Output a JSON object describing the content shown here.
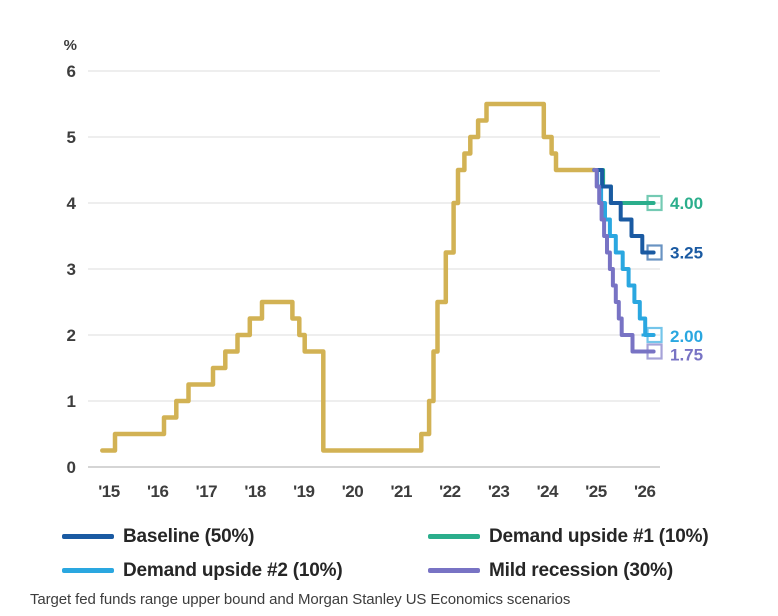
{
  "caption": "Target fed funds range upper bound and Morgan Stanley US Economics scenarios",
  "legend": {
    "items": [
      {
        "label": "Baseline (50%)",
        "color": "#1a5aa2"
      },
      {
        "label": "Demand upside #1 (10%)",
        "color": "#2bae8c"
      },
      {
        "label": "Demand upside #2 (10%)",
        "color": "#2aa7e0"
      },
      {
        "label": "Mild recession (30%)",
        "color": "#7873c4"
      }
    ]
  },
  "chart_data": {
    "type": "line",
    "unit": "%",
    "ylim": [
      0,
      6
    ],
    "yticks": [
      6,
      5,
      4,
      3,
      2,
      1,
      0
    ],
    "xtick_labels": [
      "'15",
      "'16",
      "'17",
      "'18",
      "'19",
      "'20",
      "'21",
      "'22",
      "'23",
      "'24",
      "'25",
      "'26"
    ],
    "grid": "horizontal",
    "series": [
      {
        "name": "Target fed funds range upper bound",
        "key": "history",
        "color": "#d2b254",
        "width": 4.5,
        "points": [
          [
            2015.7,
            0.25
          ],
          [
            2015.96,
            0.5
          ],
          [
            2016.96,
            0.75
          ],
          [
            2017.21,
            1.0
          ],
          [
            2017.46,
            1.25
          ],
          [
            2017.96,
            1.5
          ],
          [
            2018.21,
            1.75
          ],
          [
            2018.46,
            2.0
          ],
          [
            2018.71,
            2.25
          ],
          [
            2018.96,
            2.5
          ],
          [
            2019.58,
            2.25
          ],
          [
            2019.72,
            2.0
          ],
          [
            2019.83,
            1.75
          ],
          [
            2020.21,
            0.25
          ],
          [
            2022.21,
            0.5
          ],
          [
            2022.37,
            1.0
          ],
          [
            2022.46,
            1.75
          ],
          [
            2022.54,
            2.5
          ],
          [
            2022.71,
            3.25
          ],
          [
            2022.87,
            4.0
          ],
          [
            2022.96,
            4.5
          ],
          [
            2023.09,
            4.75
          ],
          [
            2023.21,
            5.0
          ],
          [
            2023.37,
            5.25
          ],
          [
            2023.54,
            5.5
          ],
          [
            2024.71,
            5.0
          ],
          [
            2024.87,
            4.75
          ],
          [
            2024.96,
            4.5
          ],
          [
            2025.74,
            4.5
          ]
        ]
      },
      {
        "name": "Demand upside #2 (10%)",
        "key": "demand-upside-2",
        "color": "#2aa7e0",
        "width": 4,
        "end_label": "2.00",
        "end_value": 2.0,
        "label_dy": 1,
        "points": [
          [
            2025.74,
            4.5
          ],
          [
            2025.8,
            4.25
          ],
          [
            2025.88,
            4.0
          ],
          [
            2025.96,
            3.75
          ],
          [
            2026.06,
            3.5
          ],
          [
            2026.18,
            3.25
          ],
          [
            2026.32,
            3.0
          ],
          [
            2026.44,
            2.75
          ],
          [
            2026.56,
            2.5
          ],
          [
            2026.67,
            2.25
          ],
          [
            2026.78,
            2.0
          ],
          [
            2026.95,
            2.0
          ]
        ]
      },
      {
        "name": "Demand upside #1 (10%)",
        "key": "demand-upside-1",
        "color": "#2bae8c",
        "width": 4,
        "end_label": "4.00",
        "end_value": 4.0,
        "label_dy": 0,
        "points": [
          [
            2025.74,
            4.5
          ],
          [
            2025.92,
            4.25
          ],
          [
            2026.08,
            4.0
          ],
          [
            2026.95,
            4.0
          ]
        ]
      },
      {
        "name": "Baseline (50%)",
        "key": "baseline",
        "color": "#1a5aa2",
        "width": 4,
        "end_label": "3.25",
        "end_value": 3.25,
        "label_dy": 0,
        "points": [
          [
            2025.74,
            4.5
          ],
          [
            2025.9,
            4.25
          ],
          [
            2026.08,
            4.0
          ],
          [
            2026.28,
            3.75
          ],
          [
            2026.5,
            3.5
          ],
          [
            2026.72,
            3.25
          ],
          [
            2026.95,
            3.25
          ]
        ]
      },
      {
        "name": "Mild recession (30%)",
        "key": "mild-recession",
        "color": "#7873c4",
        "width": 4,
        "end_label": "1.75",
        "end_value": 1.75,
        "label_dy": 3,
        "points": [
          [
            2025.74,
            4.5
          ],
          [
            2025.79,
            4.25
          ],
          [
            2025.84,
            4.0
          ],
          [
            2025.89,
            3.75
          ],
          [
            2025.94,
            3.5
          ],
          [
            2026.0,
            3.25
          ],
          [
            2026.06,
            3.0
          ],
          [
            2026.12,
            2.75
          ],
          [
            2026.18,
            2.5
          ],
          [
            2026.24,
            2.25
          ],
          [
            2026.3,
            2.0
          ],
          [
            2026.52,
            1.75
          ],
          [
            2026.95,
            1.75
          ]
        ]
      }
    ]
  }
}
